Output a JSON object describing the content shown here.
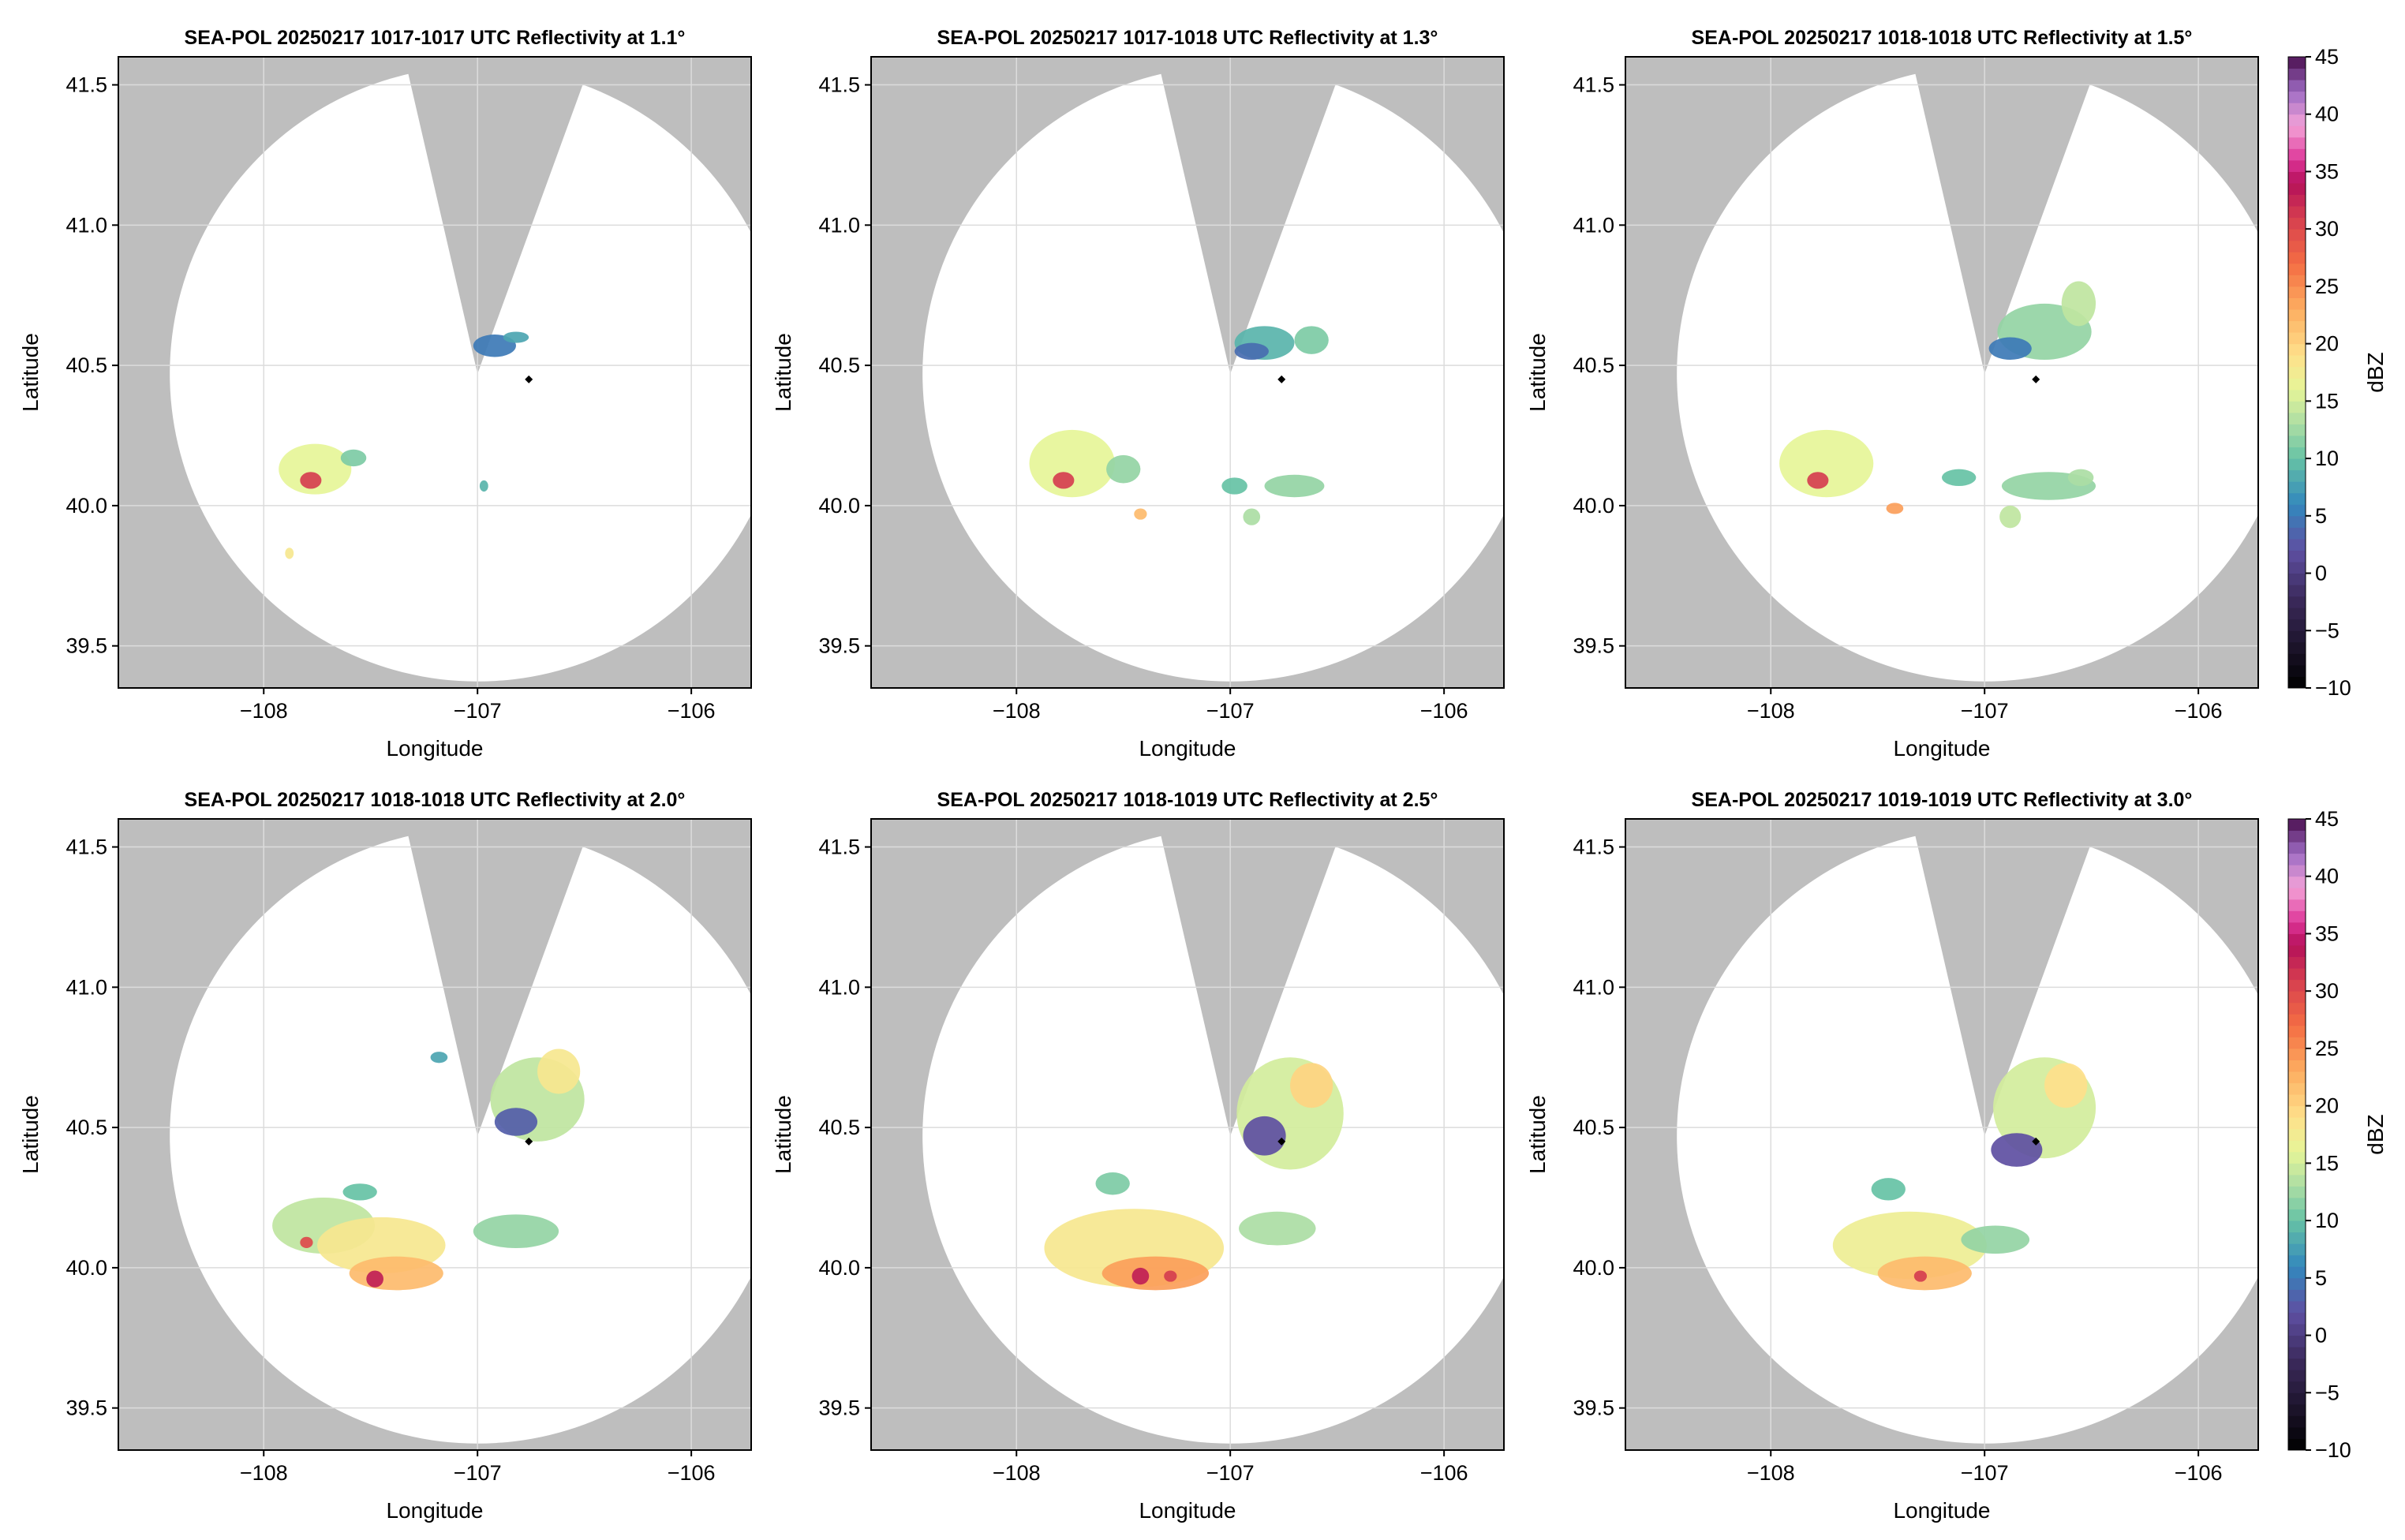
{
  "figure": {
    "background": "#ffffff",
    "mask_color": "#bebebe",
    "sweep_color": "#ffffff",
    "grid_color": "#dcdcdc",
    "site_marker_color": "#000000"
  },
  "chart_data": [
    {
      "type": "heatmap",
      "title": "SEA-POL 20250217 1017-1017 UTC Reflectivity at 1.1°",
      "xlabel": "Longitude",
      "ylabel": "Latitude",
      "xlim": [
        -108.68,
        -105.72
      ],
      "ylim": [
        39.35,
        41.6
      ],
      "xticks": [
        -108,
        -107,
        -106
      ],
      "xtick_labels": [
        "−108",
        "−107",
        "−106"
      ],
      "yticks": [
        39.5,
        40.0,
        40.5,
        41.0,
        41.5
      ],
      "ytick_labels": [
        "39.5",
        "40.0",
        "40.5",
        "41.0",
        "41.5"
      ],
      "grid": true,
      "radar_center": {
        "lon": -107.0,
        "lat": 40.47
      },
      "site_marker": {
        "lon": -106.76,
        "lat": 40.45
      },
      "cells": [
        {
          "lon": -107.76,
          "lat": 40.13,
          "rlon": 0.17,
          "rlat": 0.09,
          "dbz": 16
        },
        {
          "lon": -107.78,
          "lat": 40.09,
          "rlon": 0.05,
          "rlat": 0.03,
          "dbz": 31
        },
        {
          "lon": -107.58,
          "lat": 40.17,
          "rlon": 0.06,
          "rlat": 0.03,
          "dbz": 11
        },
        {
          "lon": -106.92,
          "lat": 40.57,
          "rlon": 0.1,
          "rlat": 0.04,
          "dbz": 5
        },
        {
          "lon": -106.82,
          "lat": 40.6,
          "rlon": 0.06,
          "rlat": 0.02,
          "dbz": 8
        },
        {
          "lon": -106.97,
          "lat": 40.07,
          "rlon": 0.02,
          "rlat": 0.02,
          "dbz": 9
        },
        {
          "lon": -107.88,
          "lat": 39.83,
          "rlon": 0.02,
          "rlat": 0.02,
          "dbz": 18
        }
      ]
    },
    {
      "type": "heatmap",
      "title": "SEA-POL 20250217 1017-1018 UTC Reflectivity at 1.3°",
      "xlabel": "Longitude",
      "ylabel": "Latitude",
      "xlim": [
        -108.68,
        -105.72
      ],
      "ylim": [
        39.35,
        41.6
      ],
      "xticks": [
        -108,
        -107,
        -106
      ],
      "xtick_labels": [
        "−108",
        "−107",
        "−106"
      ],
      "yticks": [
        39.5,
        40.0,
        40.5,
        41.0,
        41.5
      ],
      "ytick_labels": [
        "39.5",
        "40.0",
        "40.5",
        "41.0",
        "41.5"
      ],
      "grid": true,
      "radar_center": {
        "lon": -107.0,
        "lat": 40.47
      },
      "site_marker": {
        "lon": -106.76,
        "lat": 40.45
      },
      "cells": [
        {
          "lon": -107.74,
          "lat": 40.15,
          "rlon": 0.2,
          "rlat": 0.12,
          "dbz": 16
        },
        {
          "lon": -107.78,
          "lat": 40.09,
          "rlon": 0.05,
          "rlat": 0.03,
          "dbz": 31
        },
        {
          "lon": -107.5,
          "lat": 40.13,
          "rlon": 0.08,
          "rlat": 0.05,
          "dbz": 12
        },
        {
          "lon": -106.84,
          "lat": 40.58,
          "rlon": 0.14,
          "rlat": 0.06,
          "dbz": 9
        },
        {
          "lon": -106.9,
          "lat": 40.55,
          "rlon": 0.08,
          "rlat": 0.03,
          "dbz": 4
        },
        {
          "lon": -106.62,
          "lat": 40.59,
          "rlon": 0.08,
          "rlat": 0.05,
          "dbz": 11
        },
        {
          "lon": -106.7,
          "lat": 40.07,
          "rlon": 0.14,
          "rlat": 0.04,
          "dbz": 12
        },
        {
          "lon": -106.98,
          "lat": 40.07,
          "rlon": 0.06,
          "rlat": 0.03,
          "dbz": 10
        },
        {
          "lon": -107.42,
          "lat": 39.97,
          "rlon": 0.03,
          "rlat": 0.02,
          "dbz": 22
        },
        {
          "lon": -106.9,
          "lat": 39.96,
          "rlon": 0.04,
          "rlat": 0.03,
          "dbz": 13
        }
      ]
    },
    {
      "type": "heatmap",
      "title": "SEA-POL 20250217 1018-1018 UTC Reflectivity at 1.5°",
      "xlabel": "Longitude",
      "ylabel": "Latitude",
      "xlim": [
        -108.68,
        -105.72
      ],
      "ylim": [
        39.35,
        41.6
      ],
      "xticks": [
        -108,
        -107,
        -106
      ],
      "xtick_labels": [
        "−108",
        "−107",
        "−106"
      ],
      "yticks": [
        39.5,
        40.0,
        40.5,
        41.0,
        41.5
      ],
      "ytick_labels": [
        "39.5",
        "40.0",
        "40.5",
        "41.0",
        "41.5"
      ],
      "grid": true,
      "radar_center": {
        "lon": -107.0,
        "lat": 40.47
      },
      "site_marker": {
        "lon": -106.76,
        "lat": 40.45
      },
      "cells": [
        {
          "lon": -107.74,
          "lat": 40.15,
          "rlon": 0.22,
          "rlat": 0.12,
          "dbz": 16
        },
        {
          "lon": -107.78,
          "lat": 40.09,
          "rlon": 0.05,
          "rlat": 0.03,
          "dbz": 31
        },
        {
          "lon": -106.72,
          "lat": 40.62,
          "rlon": 0.22,
          "rlat": 0.1,
          "dbz": 12
        },
        {
          "lon": -106.88,
          "lat": 40.56,
          "rlon": 0.1,
          "rlat": 0.04,
          "dbz": 5
        },
        {
          "lon": -106.56,
          "lat": 40.72,
          "rlon": 0.08,
          "rlat": 0.08,
          "dbz": 14
        },
        {
          "lon": -106.7,
          "lat": 40.07,
          "rlon": 0.22,
          "rlat": 0.05,
          "dbz": 12
        },
        {
          "lon": -107.12,
          "lat": 40.1,
          "rlon": 0.08,
          "rlat": 0.03,
          "dbz": 10
        },
        {
          "lon": -107.42,
          "lat": 39.99,
          "rlon": 0.04,
          "rlat": 0.02,
          "dbz": 24
        },
        {
          "lon": -106.88,
          "lat": 39.96,
          "rlon": 0.05,
          "rlat": 0.04,
          "dbz": 14
        },
        {
          "lon": -106.55,
          "lat": 40.1,
          "rlon": 0.06,
          "rlat": 0.03,
          "dbz": 13
        }
      ]
    },
    {
      "type": "heatmap",
      "title": "SEA-POL 20250217 1018-1018 UTC Reflectivity at 2.0°",
      "xlabel": "Longitude",
      "ylabel": "Latitude",
      "xlim": [
        -108.68,
        -105.72
      ],
      "ylim": [
        39.35,
        41.6
      ],
      "xticks": [
        -108,
        -107,
        -106
      ],
      "xtick_labels": [
        "−108",
        "−107",
        "−106"
      ],
      "yticks": [
        39.5,
        40.0,
        40.5,
        41.0,
        41.5
      ],
      "ytick_labels": [
        "39.5",
        "40.0",
        "40.5",
        "41.0",
        "41.5"
      ],
      "grid": true,
      "radar_center": {
        "lon": -107.0,
        "lat": 40.47
      },
      "site_marker": {
        "lon": -106.76,
        "lat": 40.45
      },
      "cells": [
        {
          "lon": -107.72,
          "lat": 40.15,
          "rlon": 0.24,
          "rlat": 0.1,
          "dbz": 14
        },
        {
          "lon": -107.45,
          "lat": 40.08,
          "rlon": 0.3,
          "rlat": 0.1,
          "dbz": 18
        },
        {
          "lon": -107.38,
          "lat": 39.98,
          "rlon": 0.22,
          "rlat": 0.06,
          "dbz": 22
        },
        {
          "lon": -107.48,
          "lat": 39.96,
          "rlon": 0.04,
          "rlat": 0.03,
          "dbz": 33
        },
        {
          "lon": -107.8,
          "lat": 40.09,
          "rlon": 0.03,
          "rlat": 0.02,
          "dbz": 30
        },
        {
          "lon": -106.72,
          "lat": 40.6,
          "rlon": 0.22,
          "rlat": 0.15,
          "dbz": 14
        },
        {
          "lon": -106.82,
          "lat": 40.52,
          "rlon": 0.1,
          "rlat": 0.05,
          "dbz": 3
        },
        {
          "lon": -106.62,
          "lat": 40.7,
          "rlon": 0.1,
          "rlat": 0.08,
          "dbz": 18
        },
        {
          "lon": -106.82,
          "lat": 40.13,
          "rlon": 0.2,
          "rlat": 0.06,
          "dbz": 12
        },
        {
          "lon": -107.55,
          "lat": 40.27,
          "rlon": 0.08,
          "rlat": 0.03,
          "dbz": 10
        },
        {
          "lon": -107.18,
          "lat": 40.75,
          "rlon": 0.04,
          "rlat": 0.02,
          "dbz": 8
        }
      ]
    },
    {
      "type": "heatmap",
      "title": "SEA-POL 20250217 1018-1019 UTC Reflectivity at 2.5°",
      "xlabel": "Longitude",
      "ylabel": "Latitude",
      "xlim": [
        -108.68,
        -105.72
      ],
      "ylim": [
        39.35,
        41.6
      ],
      "xticks": [
        -108,
        -107,
        -106
      ],
      "xtick_labels": [
        "−108",
        "−107",
        "−106"
      ],
      "yticks": [
        39.5,
        40.0,
        40.5,
        41.0,
        41.5
      ],
      "ytick_labels": [
        "39.5",
        "40.0",
        "40.5",
        "41.0",
        "41.5"
      ],
      "grid": true,
      "radar_center": {
        "lon": -107.0,
        "lat": 40.47
      },
      "site_marker": {
        "lon": -106.76,
        "lat": 40.45
      },
      "cells": [
        {
          "lon": -107.45,
          "lat": 40.07,
          "rlon": 0.42,
          "rlat": 0.14,
          "dbz": 18
        },
        {
          "lon": -107.35,
          "lat": 39.98,
          "rlon": 0.25,
          "rlat": 0.06,
          "dbz": 24
        },
        {
          "lon": -107.42,
          "lat": 39.97,
          "rlon": 0.04,
          "rlat": 0.03,
          "dbz": 33
        },
        {
          "lon": -107.28,
          "lat": 39.97,
          "rlon": 0.03,
          "rlat": 0.02,
          "dbz": 31
        },
        {
          "lon": -106.72,
          "lat": 40.55,
          "rlon": 0.25,
          "rlat": 0.2,
          "dbz": 15
        },
        {
          "lon": -106.84,
          "lat": 40.47,
          "rlon": 0.1,
          "rlat": 0.07,
          "dbz": 2
        },
        {
          "lon": -106.62,
          "lat": 40.65,
          "rlon": 0.1,
          "rlat": 0.08,
          "dbz": 20
        },
        {
          "lon": -106.78,
          "lat": 40.14,
          "rlon": 0.18,
          "rlat": 0.06,
          "dbz": 13
        },
        {
          "lon": -107.55,
          "lat": 40.3,
          "rlon": 0.08,
          "rlat": 0.04,
          "dbz": 11
        }
      ]
    },
    {
      "type": "heatmap",
      "title": "SEA-POL 20250217 1019-1019 UTC Reflectivity at 3.0°",
      "xlabel": "Longitude",
      "ylabel": "Latitude",
      "xlim": [
        -108.68,
        -105.72
      ],
      "ylim": [
        39.35,
        41.6
      ],
      "xticks": [
        -108,
        -107,
        -106
      ],
      "xtick_labels": [
        "−108",
        "−107",
        "−106"
      ],
      "yticks": [
        39.5,
        40.0,
        40.5,
        41.0,
        41.5
      ],
      "ytick_labels": [
        "39.5",
        "40.0",
        "40.5",
        "41.0",
        "41.5"
      ],
      "grid": true,
      "radar_center": {
        "lon": -107.0,
        "lat": 40.47
      },
      "site_marker": {
        "lon": -106.76,
        "lat": 40.45
      },
      "cells": [
        {
          "lon": -107.35,
          "lat": 40.08,
          "rlon": 0.36,
          "rlat": 0.12,
          "dbz": 17
        },
        {
          "lon": -107.28,
          "lat": 39.98,
          "rlon": 0.22,
          "rlat": 0.06,
          "dbz": 22
        },
        {
          "lon": -107.3,
          "lat": 39.97,
          "rlon": 0.03,
          "rlat": 0.02,
          "dbz": 31
        },
        {
          "lon": -106.72,
          "lat": 40.57,
          "rlon": 0.24,
          "rlat": 0.18,
          "dbz": 15
        },
        {
          "lon": -106.85,
          "lat": 40.42,
          "rlon": 0.12,
          "rlat": 0.06,
          "dbz": 2
        },
        {
          "lon": -106.62,
          "lat": 40.65,
          "rlon": 0.1,
          "rlat": 0.08,
          "dbz": 19
        },
        {
          "lon": -106.95,
          "lat": 40.1,
          "rlon": 0.16,
          "rlat": 0.05,
          "dbz": 12
        },
        {
          "lon": -107.45,
          "lat": 40.28,
          "rlon": 0.08,
          "rlat": 0.04,
          "dbz": 10
        }
      ]
    }
  ],
  "colorbar": {
    "label": "dBZ",
    "min": -10,
    "max": 45,
    "step": 1,
    "ticks": [
      -10,
      -5,
      0,
      5,
      10,
      15,
      20,
      25,
      30,
      35,
      40,
      45
    ],
    "tick_labels": [
      "−10",
      "−5",
      "0",
      "5",
      "10",
      "15",
      "20",
      "25",
      "30",
      "35",
      "40",
      "45"
    ],
    "stops": [
      {
        "v": -10,
        "c": "#000000"
      },
      {
        "v": -2,
        "c": "#3d2b5e"
      },
      {
        "v": 2,
        "c": "#5e4fa2"
      },
      {
        "v": 6,
        "c": "#3288bd"
      },
      {
        "v": 10,
        "c": "#66c2a5"
      },
      {
        "v": 13,
        "c": "#abdda4"
      },
      {
        "v": 16,
        "c": "#e6f598"
      },
      {
        "v": 19,
        "c": "#fee08b"
      },
      {
        "v": 23,
        "c": "#fdae61"
      },
      {
        "v": 27,
        "c": "#f46d43"
      },
      {
        "v": 31,
        "c": "#d53e4f"
      },
      {
        "v": 34,
        "c": "#b5105a"
      },
      {
        "v": 36,
        "c": "#dd3497"
      },
      {
        "v": 39,
        "c": "#f4a3d8"
      },
      {
        "v": 42,
        "c": "#9e6cc4"
      },
      {
        "v": 45,
        "c": "#4a0e4e"
      }
    ]
  }
}
